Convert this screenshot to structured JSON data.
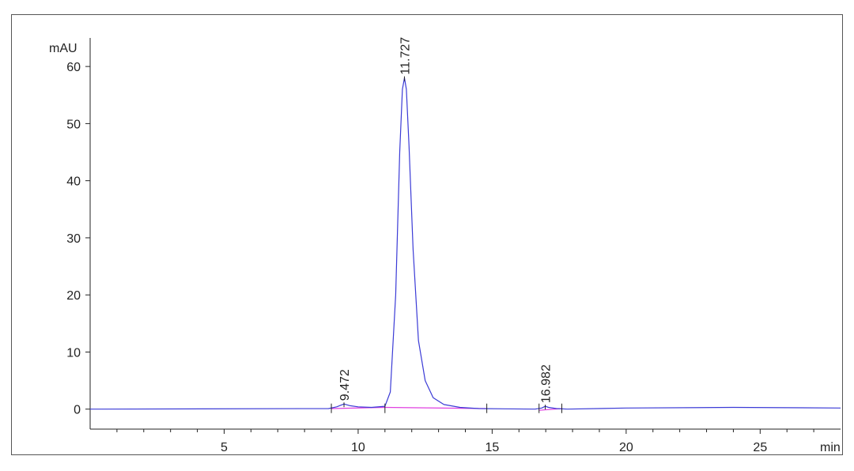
{
  "chart_data": {
    "type": "line",
    "title": "",
    "xlabel": "",
    "ylabel": "",
    "x_unit_label": "min",
    "y_unit_label": "mAU",
    "xlim": [
      0,
      28
    ],
    "ylim": [
      -3.5,
      65
    ],
    "x_ticks": [
      5,
      10,
      15,
      20,
      25
    ],
    "x_minor_ticks": [
      1,
      2,
      3,
      4,
      6,
      7,
      8,
      9,
      11,
      12,
      13,
      14,
      16,
      17,
      18,
      19,
      21,
      22,
      23,
      24,
      26,
      27
    ],
    "y_ticks": [
      0,
      10,
      20,
      30,
      40,
      50,
      60
    ],
    "grid": false,
    "legend": "none",
    "colors": {
      "signal": "#3b3bd6",
      "baseline": "#e040e0",
      "frame": "#555555",
      "axis": "#222222",
      "text": "#222222"
    },
    "series": [
      {
        "x": [
          0,
          8.9,
          9.2,
          9.472,
          9.7,
          10.0,
          10.5,
          11.0,
          11.2,
          11.4,
          11.55,
          11.65,
          11.727,
          11.8,
          11.9,
          12.05,
          12.25,
          12.5,
          12.8,
          13.2,
          13.8,
          14.5,
          16.6,
          16.85,
          16.982,
          17.1,
          17.4,
          17.8,
          20.0,
          24.0,
          28.0
        ],
        "y": [
          0,
          0.1,
          0.4,
          0.9,
          0.6,
          0.4,
          0.3,
          0.5,
          3.0,
          20.0,
          45.0,
          56.0,
          58.0,
          56.0,
          46.0,
          28.0,
          12.0,
          5.0,
          2.0,
          0.8,
          0.3,
          0.1,
          0.0,
          0.2,
          0.5,
          0.3,
          0.1,
          0.0,
          0.2,
          0.3,
          0.2
        ]
      }
    ],
    "baselines": [
      {
        "x": [
          9.0,
          11.0
        ],
        "y": [
          0.1,
          0.3
        ]
      },
      {
        "x": [
          11.0,
          14.8
        ],
        "y": [
          0.3,
          0.1
        ]
      },
      {
        "x": [
          16.75,
          17.6
        ],
        "y": [
          -0.2,
          0.1
        ]
      }
    ],
    "peak_markers": [
      9.0,
      11.0,
      14.8,
      16.75,
      17.6
    ],
    "peaks": [
      {
        "rt": 9.472,
        "label": "9.472",
        "height": 0.9
      },
      {
        "rt": 11.727,
        "label": "11.727",
        "height": 58.0
      },
      {
        "rt": 16.982,
        "label": "16.982",
        "height": 0.5
      }
    ]
  }
}
